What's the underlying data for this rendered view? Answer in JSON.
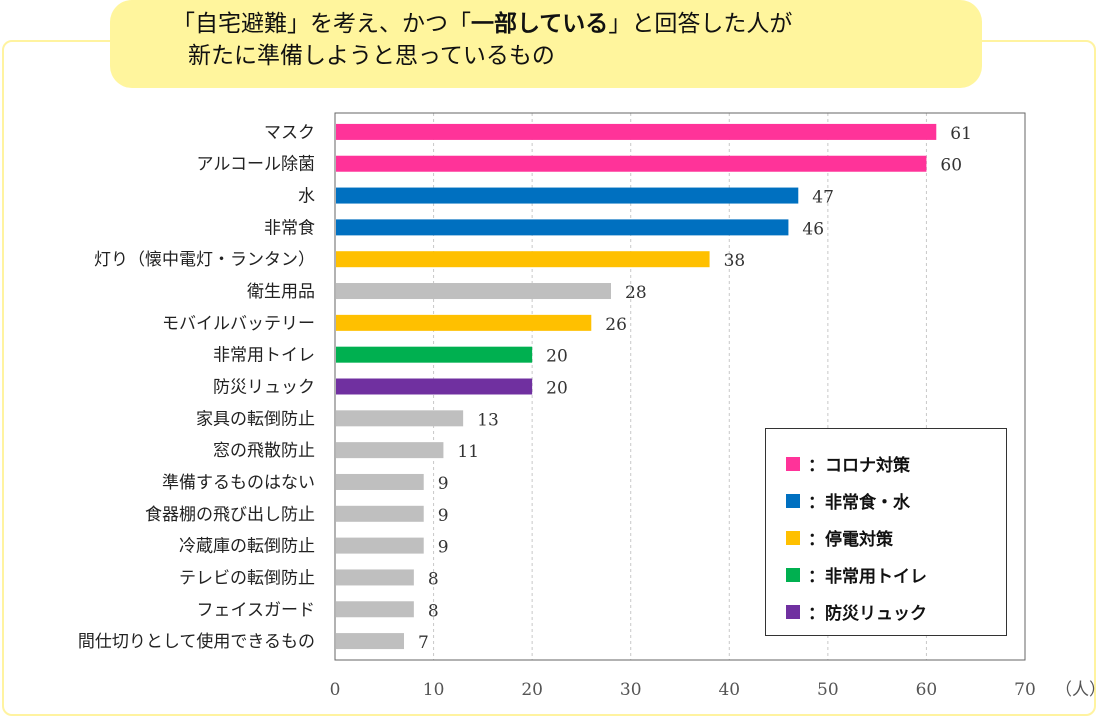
{
  "title": {
    "line1_a": "「自宅避難」を考え、かつ「",
    "line1_bold": "一部している",
    "line1_b": "」と回答した人が",
    "line2": "新たに準備しようと思っているもの"
  },
  "colors": {
    "corona": "#ff3399",
    "food": "#0070c0",
    "power": "#ffc000",
    "toilet": "#00b050",
    "bag": "#7030a0",
    "other": "#bfbfbf"
  },
  "chart_data": {
    "type": "bar",
    "orientation": "horizontal",
    "categories": [
      "マスク",
      "アルコール除菌",
      "水",
      "非常食",
      "灯り（懐中電灯・ランタン）",
      "衛生用品",
      "モバイルバッテリー",
      "非常用トイレ",
      "防災リュック",
      "家具の転倒防止",
      "窓の飛散防止",
      "準備するものはない",
      "食器棚の飛び出し防止",
      "冷蔵庫の転倒防止",
      "テレビの転倒防止",
      "フェイスガード",
      "間仕切りとして使用できるもの"
    ],
    "values": [
      61,
      60,
      47,
      46,
      38,
      28,
      26,
      20,
      20,
      13,
      11,
      9,
      9,
      9,
      8,
      8,
      7
    ],
    "groups": [
      "corona",
      "corona",
      "food",
      "food",
      "power",
      "other",
      "power",
      "toilet",
      "bag",
      "other",
      "other",
      "other",
      "other",
      "other",
      "other",
      "other",
      "other"
    ],
    "xlim": [
      0,
      70
    ],
    "xticks": [
      0,
      10,
      20,
      30,
      40,
      50,
      60,
      70
    ],
    "xunit": "（人）",
    "grid": true,
    "legend": {
      "placement": "bottom-right",
      "entries": [
        {
          "key": "corona",
          "label": "：コロナ対策"
        },
        {
          "key": "food",
          "label": "：非常食・水"
        },
        {
          "key": "power",
          "label": "：停電対策"
        },
        {
          "key": "toilet",
          "label": "：非常用トイレ"
        },
        {
          "key": "bag",
          "label": "：防災リュック"
        }
      ]
    }
  }
}
